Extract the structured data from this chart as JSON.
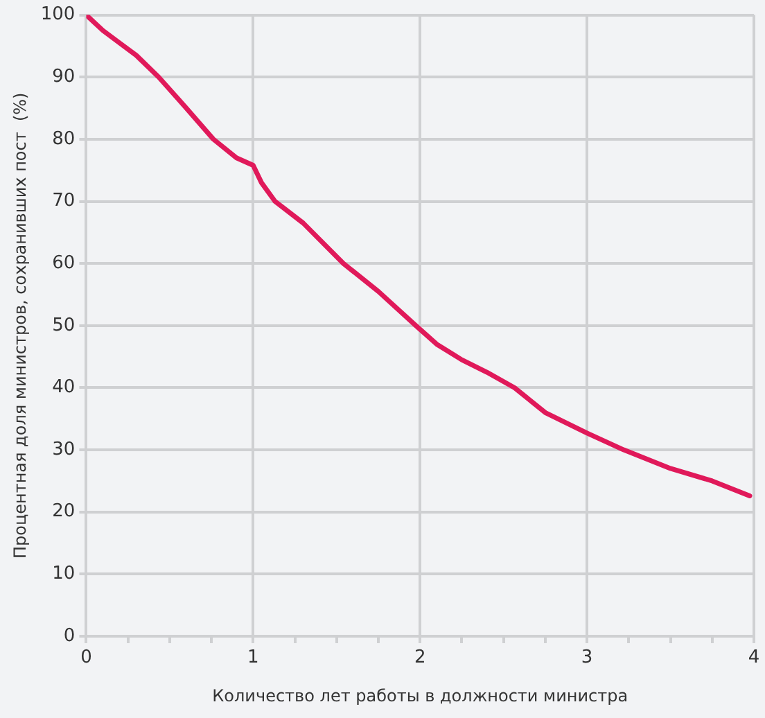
{
  "chart_data": {
    "type": "line",
    "xlabel": "Количество лет работы в должности министра",
    "ylabel": "Процентная доля министров, сохранивших пост  (%)",
    "x": [
      0,
      0.1,
      0.2,
      0.3,
      0.434,
      0.6,
      0.762,
      0.9,
      1,
      1.05,
      1.131,
      1.3,
      1.541,
      1.75,
      1.975,
      2.1,
      2.25,
      2.4,
      2.566,
      2.75,
      3,
      3.22,
      3.5,
      3.75,
      3.975
    ],
    "series": [
      {
        "color": "#e0195a",
        "values": [
          100,
          97.5,
          95.5,
          93.5,
          90,
          85,
          80,
          77,
          75.8,
          73,
          70,
          66.5,
          60,
          55.5,
          50,
          47,
          44.5,
          42.5,
          40,
          36,
          32.7,
          30,
          27,
          25,
          22.6
        ]
      }
    ],
    "xlim": [
      0,
      4
    ],
    "xticks": [
      0,
      {
        "value": 0.25,
        "label": null
      },
      {
        "value": 0.5,
        "label": null
      },
      {
        "value": 0.75,
        "label": null
      },
      1,
      {
        "value": 1.25,
        "label": null
      },
      {
        "value": 1.5,
        "label": null
      },
      {
        "value": 1.75,
        "label": null
      },
      2,
      {
        "value": 2.25,
        "label": null
      },
      {
        "value": 2.5,
        "label": null
      },
      {
        "value": 2.75,
        "label": null
      },
      3,
      {
        "value": 3.25,
        "label": null
      },
      {
        "value": 3.5,
        "label": null
      },
      {
        "value": 3.75,
        "label": null
      },
      4
    ],
    "ylim": [
      0,
      100
    ],
    "yticks": [
      0,
      10,
      20,
      30,
      40,
      50,
      60,
      70,
      80,
      90,
      100
    ],
    "grid": true,
    "legend": false,
    "marker": "none",
    "line_style": "solid"
  }
}
